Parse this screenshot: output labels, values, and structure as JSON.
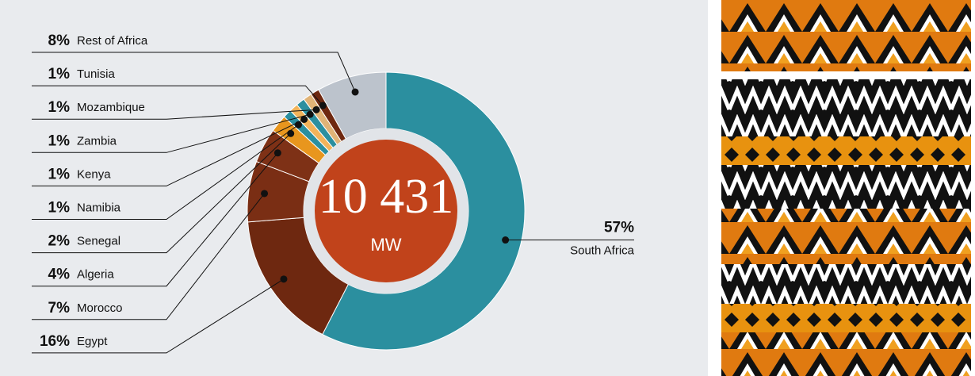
{
  "chart_data": {
    "type": "donut",
    "center_label": "10 431",
    "center_unit": "MW",
    "categories": [
      "South Africa",
      "Egypt",
      "Morocco",
      "Algeria",
      "Senegal",
      "Namibia",
      "Kenya",
      "Zambia",
      "Mozambique",
      "Tunisia",
      "Rest of Africa"
    ],
    "values": [
      57,
      16,
      7,
      4,
      2,
      1,
      1,
      1,
      1,
      1,
      8
    ],
    "value_labels": [
      "57%",
      "16%",
      "7%",
      "4%",
      "2%",
      "1%",
      "1%",
      "1%",
      "1%",
      "1%",
      "8%"
    ],
    "colors": [
      "#2b8f9f",
      "#6e2810",
      "#7a2e14",
      "#7e3116",
      "#e8961e",
      "#2b8f9f",
      "#f2b35a",
      "#2b8f9f",
      "#e0b377",
      "#6e2810",
      "#bcc3cc"
    ]
  }
}
